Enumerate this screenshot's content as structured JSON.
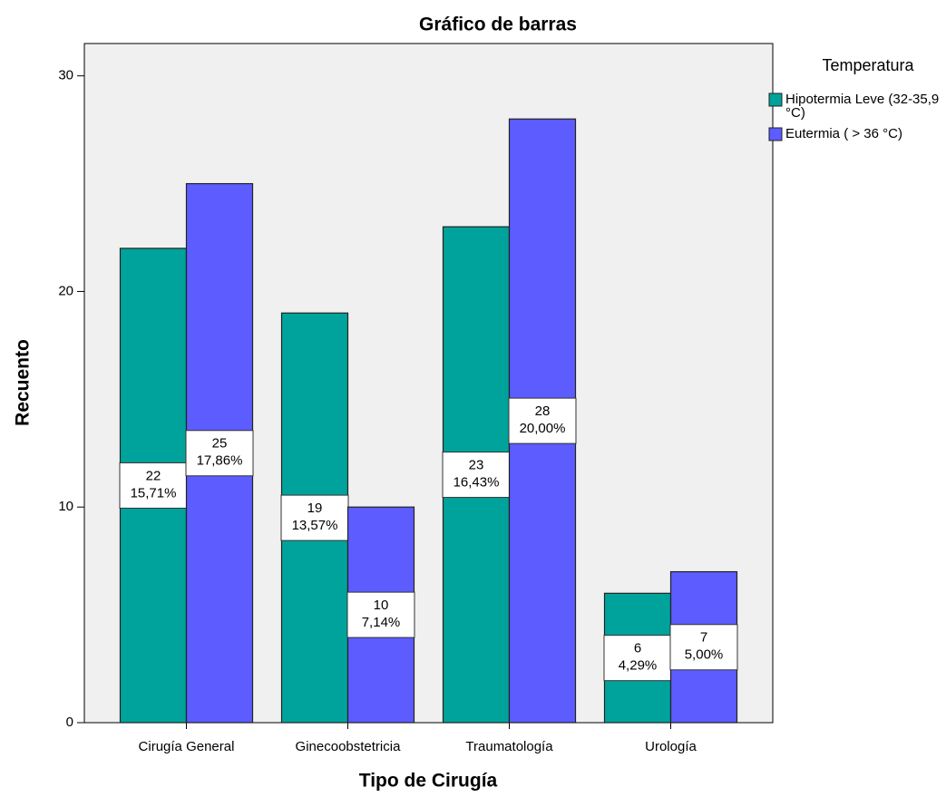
{
  "chart_data": {
    "type": "bar",
    "title": "Gráfico de barras",
    "x_label": "Tipo de Cirugía",
    "y_label": "Recuento",
    "legend_title": "Temperatura",
    "categories": [
      "Cirugía General",
      "Ginecoobstetricia",
      "Traumatología",
      "Urología"
    ],
    "series": [
      {
        "name": "Hipotermia Leve (32-35,9 °C)",
        "color": "#00a39b",
        "values": [
          22,
          19,
          23,
          6
        ],
        "percentages": [
          15.71,
          13.57,
          16.43,
          4.29
        ],
        "percentage_labels": [
          "15,71%",
          "13,57%",
          "16,43%",
          "4,29%"
        ]
      },
      {
        "name": "Eutermia ( > 36 °C)",
        "color": "#5c5cff",
        "values": [
          25,
          10,
          28,
          7
        ],
        "percentages": [
          17.86,
          7.14,
          20.0,
          5.0
        ],
        "percentage_labels": [
          "17,86%",
          "7,14%",
          "20,00%",
          "5,00%"
        ]
      }
    ],
    "ylim": [
      0,
      31.5
    ],
    "yticks": [
      0,
      10,
      20,
      30
    ],
    "legend": "right",
    "plot_background": "#f0f0f0"
  }
}
